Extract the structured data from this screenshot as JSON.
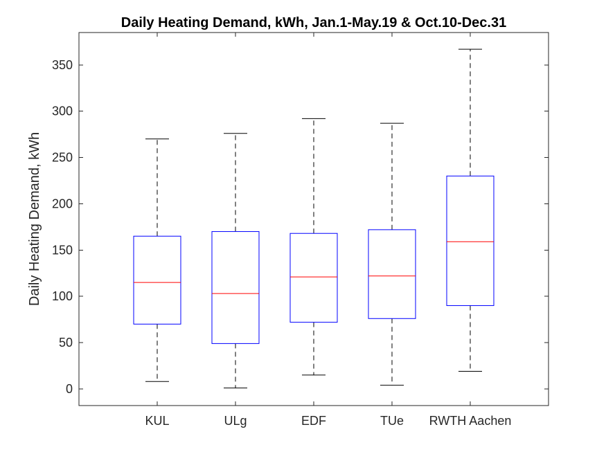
{
  "chart_data": {
    "type": "box",
    "title": "Daily Heating Demand, kWh, Jan.1-May.19 & Oct.10-Dec.31",
    "xlabel": "",
    "ylabel": "Daily Heating Demand, kWh",
    "categories": [
      "KUL",
      "ULg",
      "EDF",
      "TUe",
      "RWTH Aachen"
    ],
    "boxes": [
      {
        "category": "KUL",
        "min": 8,
        "q1": 70,
        "median": 115,
        "q3": 165,
        "max": 270
      },
      {
        "category": "ULg",
        "min": 1,
        "q1": 49,
        "median": 103,
        "q3": 170,
        "max": 276
      },
      {
        "category": "EDF",
        "min": 15,
        "q1": 72,
        "median": 121,
        "q3": 168,
        "max": 292
      },
      {
        "category": "TUe",
        "min": 4,
        "q1": 76,
        "median": 122,
        "q3": 172,
        "max": 287
      },
      {
        "category": "RWTH Aachen",
        "min": 19,
        "q1": 90,
        "median": 159,
        "q3": 230,
        "max": 367
      }
    ],
    "yticks": [
      0,
      50,
      100,
      150,
      200,
      250,
      300,
      350
    ],
    "ytick_labels": [
      "0",
      "50",
      "100",
      "150",
      "200",
      "250",
      "300",
      "350"
    ],
    "ylim": [
      -18,
      385
    ],
    "grid": false,
    "colors": {
      "box": "#0000ff",
      "median": "#ff0000",
      "whisker": "#000000",
      "axis": "#262626"
    }
  }
}
